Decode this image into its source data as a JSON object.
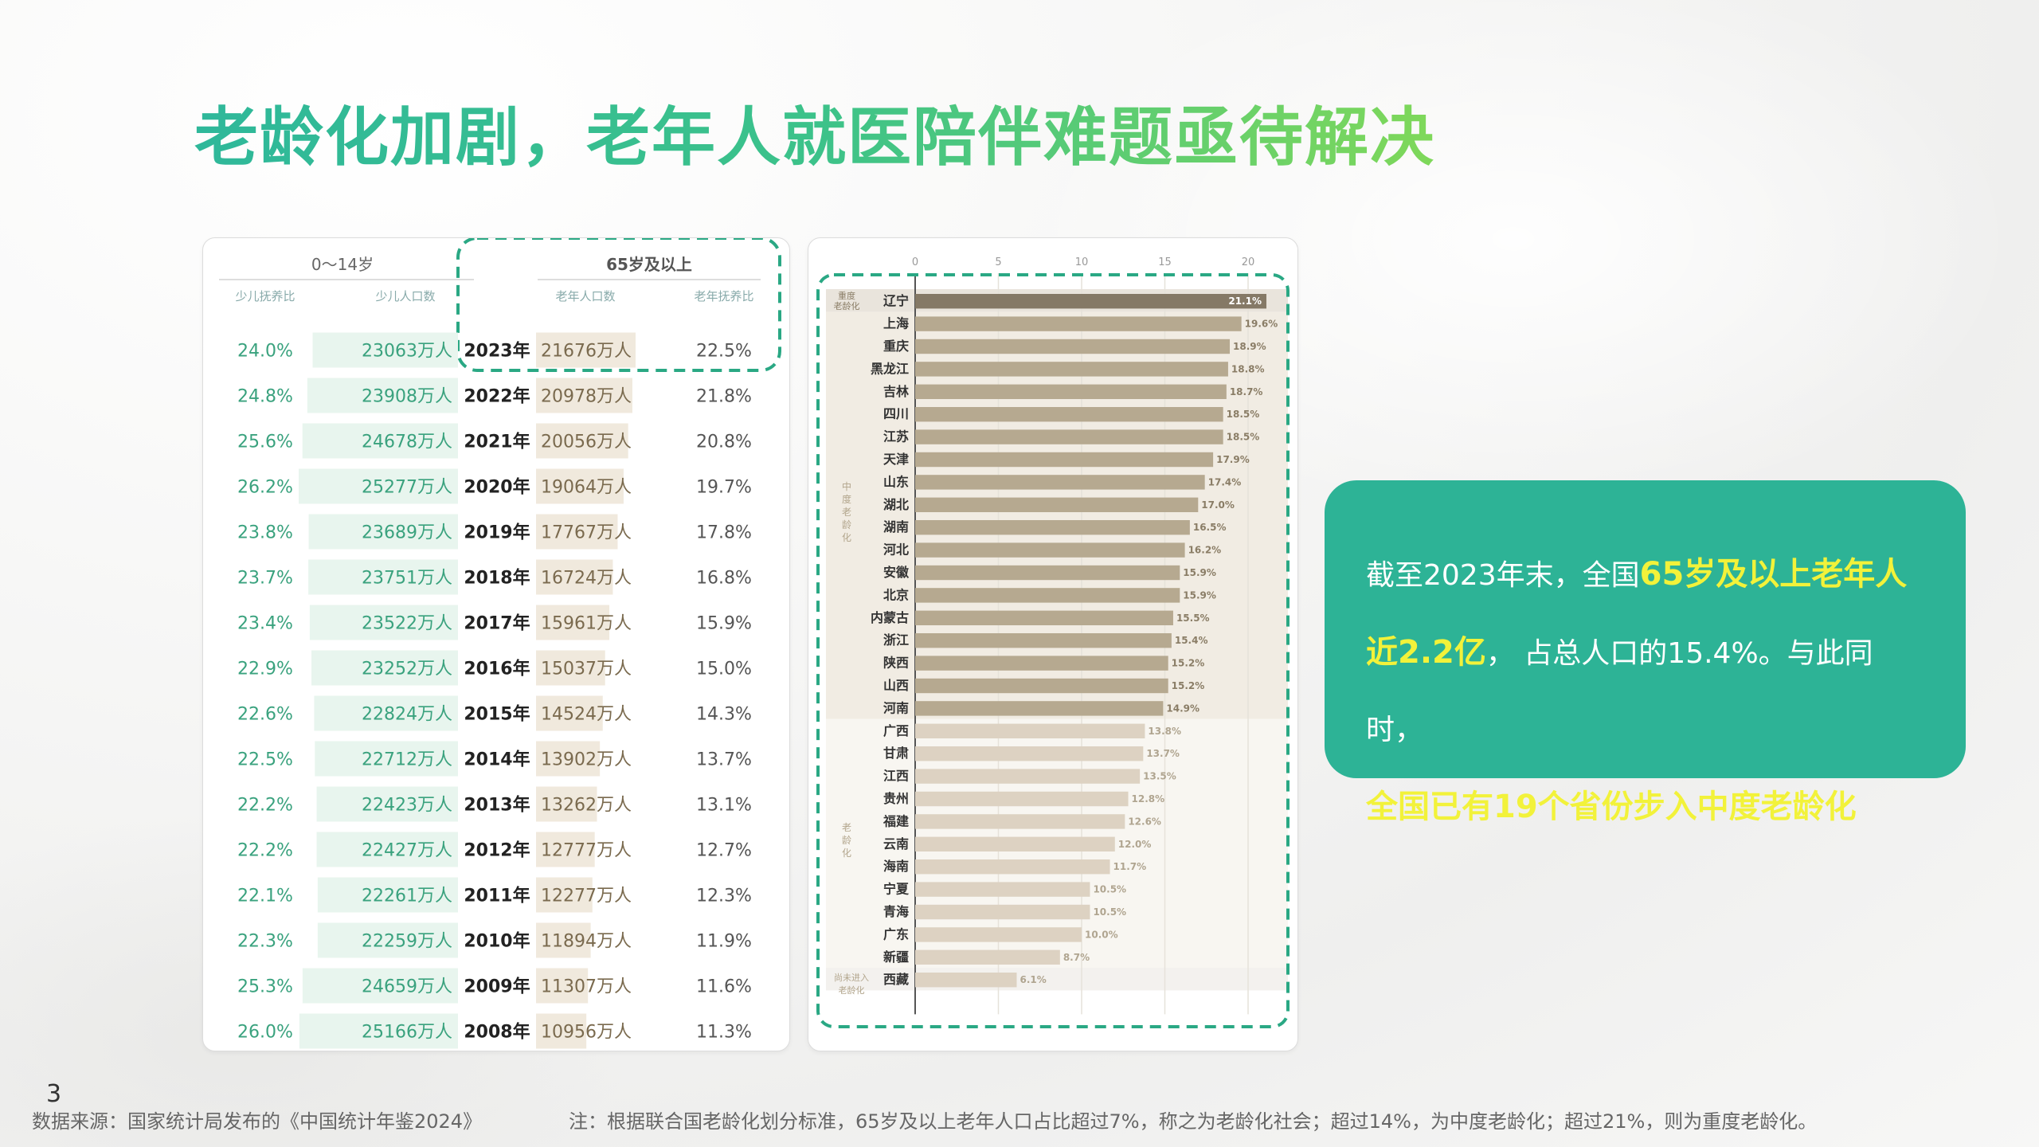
{
  "title": "老龄化加剧，老年人就医陪伴难题亟待解决",
  "page_number": "3",
  "footer": {
    "source": "数据来源：国家统计局发布的《中国统计年鉴2024》",
    "note": "注：根据联合国老龄化划分标准，65岁及以上老年人口占比超过7%，称之为老龄化社会；超过14%，为中度老龄化；超过21%，则为重度老龄化。"
  },
  "info_box": {
    "line1_prefix": "截至2023年末，全国",
    "line1_highlight": "65岁及以上老年人",
    "line2_highlight": "近2.2亿",
    "line2_text": "，  占总人口的15.4%。与此同时，",
    "line3_highlight": "全国已有19个省份步入中度老龄化"
  },
  "colors": {
    "accent_green": "#2db396",
    "highlight_yellow": "#f2f23a",
    "child_bar": "#e8f5ee",
    "elder_bar": "#f0e9dd",
    "heavy_bar": "#857966",
    "medium_bar": "#b6a990",
    "light_bar": "#ddd2c2"
  },
  "chart_data": [
    {
      "type": "table",
      "group_headers": [
        "0～14岁",
        "65岁及以上"
      ],
      "columns": [
        "少儿抚养比",
        "少儿人口数",
        "",
        "老年人口数",
        "老年抚养比"
      ],
      "rows": [
        {
          "year": "2023年",
          "child_ratio": "24.0%",
          "child_pop": "23063万人",
          "child_value": 23063,
          "elder_pop": "21676万人",
          "elder_value": 21676,
          "elder_ratio": "22.5%"
        },
        {
          "year": "2022年",
          "child_ratio": "24.8%",
          "child_pop": "23908万人",
          "child_value": 23908,
          "elder_pop": "20978万人",
          "elder_value": 20978,
          "elder_ratio": "21.8%"
        },
        {
          "year": "2021年",
          "child_ratio": "25.6%",
          "child_pop": "24678万人",
          "child_value": 24678,
          "elder_pop": "20056万人",
          "elder_value": 20056,
          "elder_ratio": "20.8%"
        },
        {
          "year": "2020年",
          "child_ratio": "26.2%",
          "child_pop": "25277万人",
          "child_value": 25277,
          "elder_pop": "19064万人",
          "elder_value": 19064,
          "elder_ratio": "19.7%"
        },
        {
          "year": "2019年",
          "child_ratio": "23.8%",
          "child_pop": "23689万人",
          "child_value": 23689,
          "elder_pop": "17767万人",
          "elder_value": 17767,
          "elder_ratio": "17.8%"
        },
        {
          "year": "2018年",
          "child_ratio": "23.7%",
          "child_pop": "23751万人",
          "child_value": 23751,
          "elder_pop": "16724万人",
          "elder_value": 16724,
          "elder_ratio": "16.8%"
        },
        {
          "year": "2017年",
          "child_ratio": "23.4%",
          "child_pop": "23522万人",
          "child_value": 23522,
          "elder_pop": "15961万人",
          "elder_value": 15961,
          "elder_ratio": "15.9%"
        },
        {
          "year": "2016年",
          "child_ratio": "22.9%",
          "child_pop": "23252万人",
          "child_value": 23252,
          "elder_pop": "15037万人",
          "elder_value": 15037,
          "elder_ratio": "15.0%"
        },
        {
          "year": "2015年",
          "child_ratio": "22.6%",
          "child_pop": "22824万人",
          "child_value": 22824,
          "elder_pop": "14524万人",
          "elder_value": 14524,
          "elder_ratio": "14.3%"
        },
        {
          "year": "2014年",
          "child_ratio": "22.5%",
          "child_pop": "22712万人",
          "child_value": 22712,
          "elder_pop": "13902万人",
          "elder_value": 13902,
          "elder_ratio": "13.7%"
        },
        {
          "year": "2013年",
          "child_ratio": "22.2%",
          "child_pop": "22423万人",
          "child_value": 22423,
          "elder_pop": "13262万人",
          "elder_value": 13262,
          "elder_ratio": "13.1%"
        },
        {
          "year": "2012年",
          "child_ratio": "22.2%",
          "child_pop": "22427万人",
          "child_value": 22427,
          "elder_pop": "12777万人",
          "elder_value": 12777,
          "elder_ratio": "12.7%"
        },
        {
          "year": "2011年",
          "child_ratio": "22.1%",
          "child_pop": "22261万人",
          "child_value": 22261,
          "elder_pop": "12277万人",
          "elder_value": 12277,
          "elder_ratio": "12.3%"
        },
        {
          "year": "2010年",
          "child_ratio": "22.3%",
          "child_pop": "22259万人",
          "child_value": 22259,
          "elder_pop": "11894万人",
          "elder_value": 11894,
          "elder_ratio": "11.9%"
        },
        {
          "year": "2009年",
          "child_ratio": "25.3%",
          "child_pop": "24659万人",
          "child_value": 24659,
          "elder_pop": "11307万人",
          "elder_value": 11307,
          "elder_ratio": "11.6%"
        },
        {
          "year": "2008年",
          "child_ratio": "26.0%",
          "child_pop": "25166万人",
          "child_value": 25166,
          "elder_pop": "10956万人",
          "elder_value": 10956,
          "elder_ratio": "11.3%"
        }
      ]
    },
    {
      "type": "bar",
      "orientation": "horizontal",
      "xlim": [
        0,
        20
      ],
      "ticks": [
        0,
        5,
        10,
        15,
        20
      ],
      "group_labels": {
        "heavy": "重度老龄化",
        "medium": "中度老龄化",
        "light": "老龄化",
        "none": "尚未进入老龄化"
      },
      "categories": [
        "辽宁",
        "上海",
        "重庆",
        "黑龙江",
        "吉林",
        "四川",
        "江苏",
        "天津",
        "山东",
        "湖北",
        "湖南",
        "河北",
        "安徽",
        "北京",
        "内蒙古",
        "浙江",
        "陕西",
        "山西",
        "河南",
        "广西",
        "甘肃",
        "江西",
        "贵州",
        "福建",
        "云南",
        "海南",
        "宁夏",
        "青海",
        "广东",
        "新疆",
        "西藏"
      ],
      "values": [
        21.1,
        19.6,
        18.9,
        18.8,
        18.7,
        18.5,
        18.5,
        17.9,
        17.4,
        17.0,
        16.5,
        16.2,
        15.9,
        15.9,
        15.5,
        15.4,
        15.2,
        15.2,
        14.9,
        13.8,
        13.7,
        13.5,
        12.8,
        12.6,
        12.0,
        11.7,
        10.5,
        10.5,
        10.0,
        8.7,
        6.1
      ],
      "value_labels": [
        "21.1%",
        "19.6%",
        "18.9%",
        "18.8%",
        "18.7%",
        "18.5%",
        "18.5%",
        "17.9%",
        "17.4%",
        "17.0%",
        "16.5%",
        "16.2%",
        "15.9%",
        "15.9%",
        "15.5%",
        "15.4%",
        "15.2%",
        "15.2%",
        "14.9%",
        "13.8%",
        "13.7%",
        "13.5%",
        "12.8%",
        "12.6%",
        "12.0%",
        "11.7%",
        "10.5%",
        "10.5%",
        "10.0%",
        "8.7%",
        "6.1%"
      ],
      "groups": [
        "heavy",
        "medium",
        "medium",
        "medium",
        "medium",
        "medium",
        "medium",
        "medium",
        "medium",
        "medium",
        "medium",
        "medium",
        "medium",
        "medium",
        "medium",
        "medium",
        "medium",
        "medium",
        "medium",
        "light",
        "light",
        "light",
        "light",
        "light",
        "light",
        "light",
        "light",
        "light",
        "light",
        "light",
        "none"
      ]
    }
  ]
}
